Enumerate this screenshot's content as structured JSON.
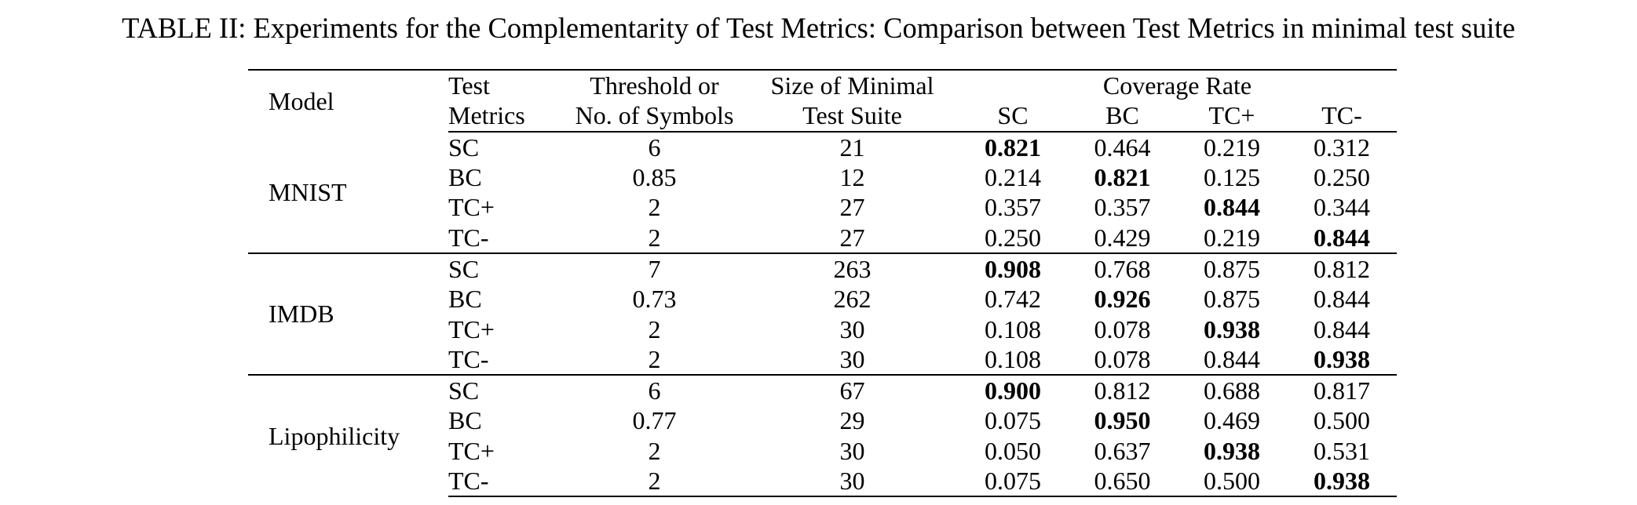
{
  "caption": "TABLE II: Experiments for the Complementarity of Test Metrics: Comparison between Test Metrics in minimal test suite",
  "table": {
    "headers": {
      "model": "Model",
      "test_metrics_line1": "Test",
      "test_metrics_line2": "Metrics",
      "threshold_line1": "Threshold or",
      "threshold_line2": "No. of Symbols",
      "size_line1": "Size of Minimal",
      "size_line2": "Test Suite",
      "coverage_rate": "Coverage Rate",
      "coverage_cols": [
        "SC",
        "BC",
        "TC+",
        "TC-"
      ]
    },
    "groups": [
      {
        "model": "MNIST",
        "rows": [
          {
            "metric": "SC",
            "threshold": "6",
            "size": "21",
            "rates": [
              "0.821",
              "0.464",
              "0.219",
              "0.312"
            ],
            "bold_index": 0
          },
          {
            "metric": "BC",
            "threshold": "0.85",
            "size": "12",
            "rates": [
              "0.214",
              "0.821",
              "0.125",
              "0.250"
            ],
            "bold_index": 1
          },
          {
            "metric": "TC+",
            "threshold": "2",
            "size": "27",
            "rates": [
              "0.357",
              "0.357",
              "0.844",
              "0.344"
            ],
            "bold_index": 2
          },
          {
            "metric": "TC-",
            "threshold": "2",
            "size": "27",
            "rates": [
              "0.250",
              "0.429",
              "0.219",
              "0.844"
            ],
            "bold_index": 3
          }
        ]
      },
      {
        "model": "IMDB",
        "rows": [
          {
            "metric": "SC",
            "threshold": "7",
            "size": "263",
            "rates": [
              "0.908",
              "0.768",
              "0.875",
              "0.812"
            ],
            "bold_index": 0
          },
          {
            "metric": "BC",
            "threshold": "0.73",
            "size": "262",
            "rates": [
              "0.742",
              "0.926",
              "0.875",
              "0.844"
            ],
            "bold_index": 1
          },
          {
            "metric": "TC+",
            "threshold": "2",
            "size": "30",
            "rates": [
              "0.108",
              "0.078",
              "0.938",
              "0.844"
            ],
            "bold_index": 2
          },
          {
            "metric": "TC-",
            "threshold": "2",
            "size": "30",
            "rates": [
              "0.108",
              "0.078",
              "0.844",
              "0.938"
            ],
            "bold_index": 3
          }
        ]
      },
      {
        "model": "Lipophilicity",
        "rows": [
          {
            "metric": "SC",
            "threshold": "6",
            "size": "67",
            "rates": [
              "0.900",
              "0.812",
              "0.688",
              "0.817"
            ],
            "bold_index": 0
          },
          {
            "metric": "BC",
            "threshold": "0.77",
            "size": "29",
            "rates": [
              "0.075",
              "0.950",
              "0.469",
              "0.500"
            ],
            "bold_index": 1
          },
          {
            "metric": "TC+",
            "threshold": "2",
            "size": "30",
            "rates": [
              "0.050",
              "0.637",
              "0.938",
              "0.531"
            ],
            "bold_index": 2
          },
          {
            "metric": "TC-",
            "threshold": "2",
            "size": "30",
            "rates": [
              "0.075",
              "0.650",
              "0.500",
              "0.938"
            ],
            "bold_index": 3
          }
        ]
      }
    ]
  }
}
